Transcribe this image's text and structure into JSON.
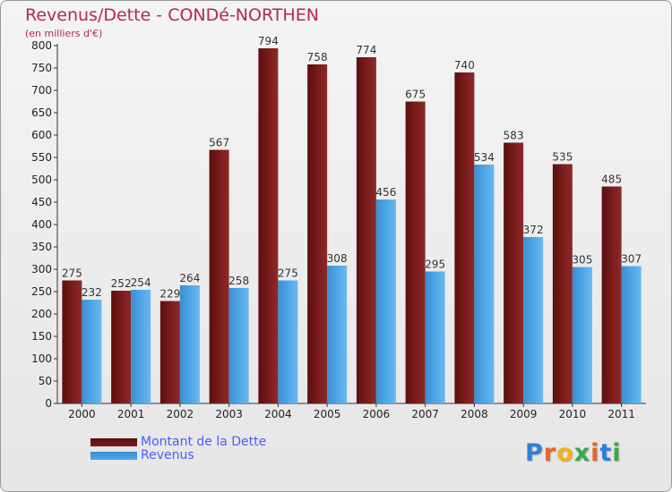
{
  "title": "Revenus/Dette - CONDé-NORTHEN",
  "subtitle": "(en milliers d'€)",
  "logo": {
    "text": "Proxiti",
    "letters": [
      "P",
      "r",
      "o",
      "x",
      "i",
      "t",
      "i"
    ],
    "colors": [
      "#2f7fd8",
      "#e8672a",
      "#f0b21f",
      "#3aa84a",
      "#e8672a",
      "#2f7fd8",
      "#3aa84a"
    ]
  },
  "colors": {
    "dette": "#7a1a1a",
    "revenus": "#4ea6e6",
    "title": "#b5265a",
    "legend_text": "#4a5cff"
  },
  "chart_data": {
    "type": "bar",
    "categories": [
      "2000",
      "2001",
      "2002",
      "2003",
      "2004",
      "2005",
      "2006",
      "2007",
      "2008",
      "2009",
      "2010",
      "2011"
    ],
    "series": [
      {
        "name": "Montant de la Dette",
        "values": [
          275,
          252,
          229,
          567,
          794,
          758,
          774,
          675,
          740,
          583,
          535,
          485
        ]
      },
      {
        "name": "Revenus",
        "values": [
          232,
          254,
          264,
          258,
          275,
          308,
          456,
          295,
          534,
          372,
          305,
          307
        ]
      }
    ],
    "yticks": [
      0,
      50,
      100,
      150,
      200,
      250,
      300,
      350,
      400,
      450,
      500,
      550,
      600,
      650,
      700,
      750,
      800
    ],
    "ylim": [
      0,
      800
    ],
    "grid": false,
    "legend": "bottom-left"
  }
}
